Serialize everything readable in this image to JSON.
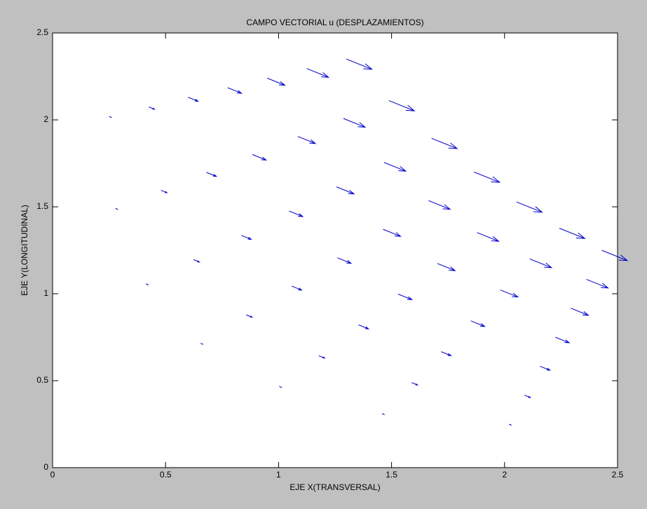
{
  "chart_data": {
    "type": "quiver",
    "title": "CAMPO VECTORIAL u (DESPLAZAMIENTOS)",
    "xlabel": "EJE X(TRANSVERSAL)",
    "ylabel": "EJE Y(LONGITUDINAL)",
    "color": "#0000cc",
    "xlim": [
      0,
      2.5
    ],
    "ylim": [
      0,
      2.5
    ],
    "xticks": [
      0,
      0.5,
      1,
      1.5,
      2,
      2.5
    ],
    "yticks": [
      0,
      0.5,
      1,
      1.5,
      2,
      2.5
    ],
    "x": [
      0.25,
      0.425,
      0.6,
      0.775,
      0.95,
      1.125,
      1.3,
      0.278,
      0.48,
      0.681,
      0.884,
      1.085,
      1.287,
      1.488,
      0.413,
      0.624,
      0.835,
      1.046,
      1.256,
      1.467,
      1.677,
      0.655,
      0.857,
      1.058,
      1.26,
      1.462,
      1.663,
      1.865,
      1.003,
      1.178,
      1.354,
      1.529,
      1.703,
      1.878,
      2.053,
      1.458,
      1.589,
      1.719,
      1.851,
      1.981,
      2.112,
      2.242,
      2.02,
      2.088,
      2.157,
      2.225,
      2.293,
      2.362,
      2.43
    ],
    "y": [
      2.02,
      2.075,
      2.13,
      2.185,
      2.24,
      2.295,
      2.35,
      1.491,
      1.595,
      1.698,
      1.801,
      1.905,
      2.008,
      2.111,
      1.057,
      1.196,
      1.336,
      1.476,
      1.615,
      1.755,
      1.894,
      0.715,
      0.879,
      1.044,
      1.207,
      1.371,
      1.536,
      1.7,
      0.467,
      0.644,
      0.821,
      0.998,
      1.174,
      1.352,
      1.528,
      0.311,
      0.489,
      0.667,
      0.844,
      1.022,
      1.2,
      1.377,
      0.25,
      0.417,
      0.583,
      0.75,
      0.917,
      1.083,
      1.25
    ],
    "u": [
      0.009,
      0.026,
      0.044,
      0.061,
      0.078,
      0.096,
      0.113,
      0.009,
      0.026,
      0.044,
      0.061,
      0.078,
      0.096,
      0.113,
      0.009,
      0.026,
      0.044,
      0.061,
      0.078,
      0.096,
      0.113,
      0.009,
      0.026,
      0.044,
      0.061,
      0.078,
      0.096,
      0.113,
      0.009,
      0.026,
      0.044,
      0.061,
      0.078,
      0.096,
      0.113,
      0.009,
      0.026,
      0.044,
      0.061,
      0.078,
      0.096,
      0.113,
      0.009,
      0.026,
      0.044,
      0.061,
      0.078,
      0.096,
      0.113
    ],
    "v": [
      -0.005,
      -0.014,
      -0.023,
      -0.032,
      -0.041,
      -0.05,
      -0.059,
      -0.005,
      -0.014,
      -0.023,
      -0.032,
      -0.041,
      -0.05,
      -0.059,
      -0.005,
      -0.014,
      -0.023,
      -0.032,
      -0.041,
      -0.05,
      -0.059,
      -0.005,
      -0.014,
      -0.023,
      -0.032,
      -0.041,
      -0.05,
      -0.059,
      -0.005,
      -0.014,
      -0.023,
      -0.032,
      -0.041,
      -0.05,
      -0.059,
      -0.005,
      -0.014,
      -0.023,
      -0.032,
      -0.041,
      -0.05,
      -0.059,
      -0.005,
      -0.014,
      -0.023,
      -0.032,
      -0.041,
      -0.05,
      -0.059
    ]
  }
}
